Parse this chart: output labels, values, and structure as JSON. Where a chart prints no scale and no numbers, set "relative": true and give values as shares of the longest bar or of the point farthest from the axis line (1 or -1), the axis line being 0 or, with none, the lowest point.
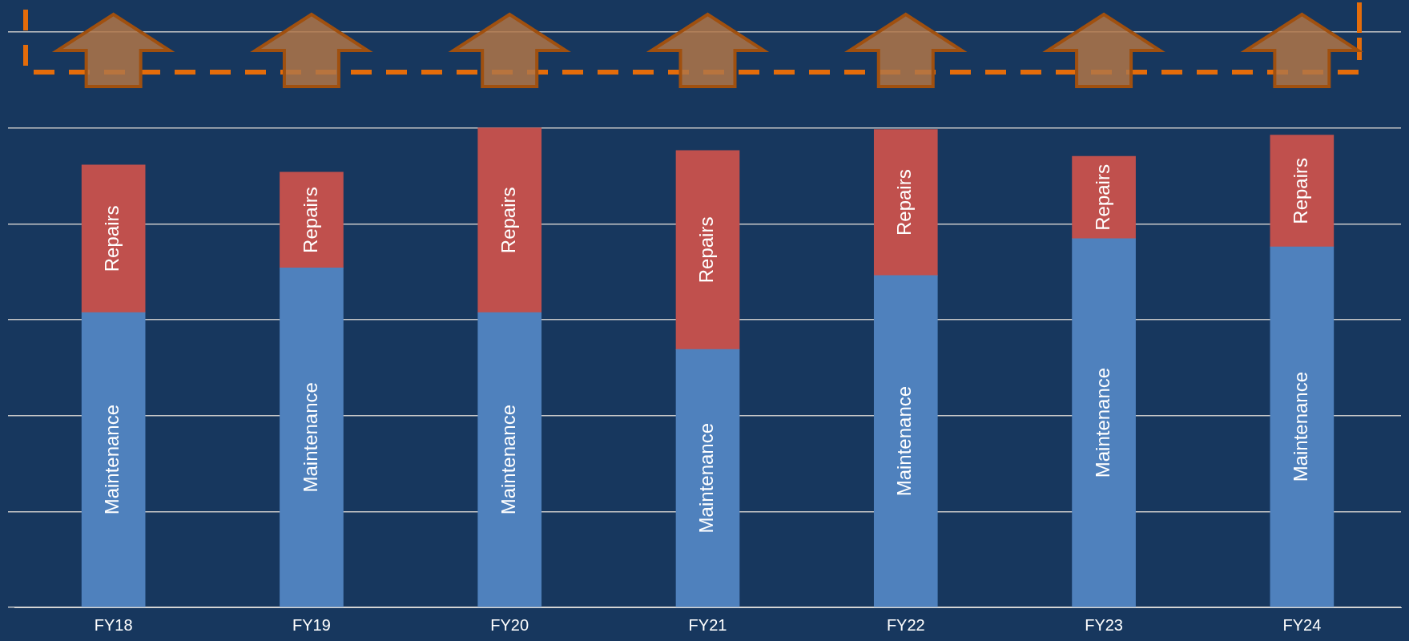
{
  "chart_data": {
    "type": "bar",
    "stacked": true,
    "relative": true,
    "grid": "y",
    "legend": false,
    "categories": [
      "FY18",
      "FY19",
      "FY20",
      "FY21",
      "FY22",
      "FY23",
      "FY24"
    ],
    "series": [
      {
        "name": "Maintenance",
        "color": "#4f81bd",
        "values": [
          0.615,
          0.708,
          0.615,
          0.538,
          0.692,
          0.769,
          0.752
        ]
      },
      {
        "name": "Repairs",
        "color": "#c0504d",
        "values": [
          0.308,
          0.2,
          0.385,
          0.415,
          0.305,
          0.172,
          0.233
        ]
      }
    ]
  }
}
